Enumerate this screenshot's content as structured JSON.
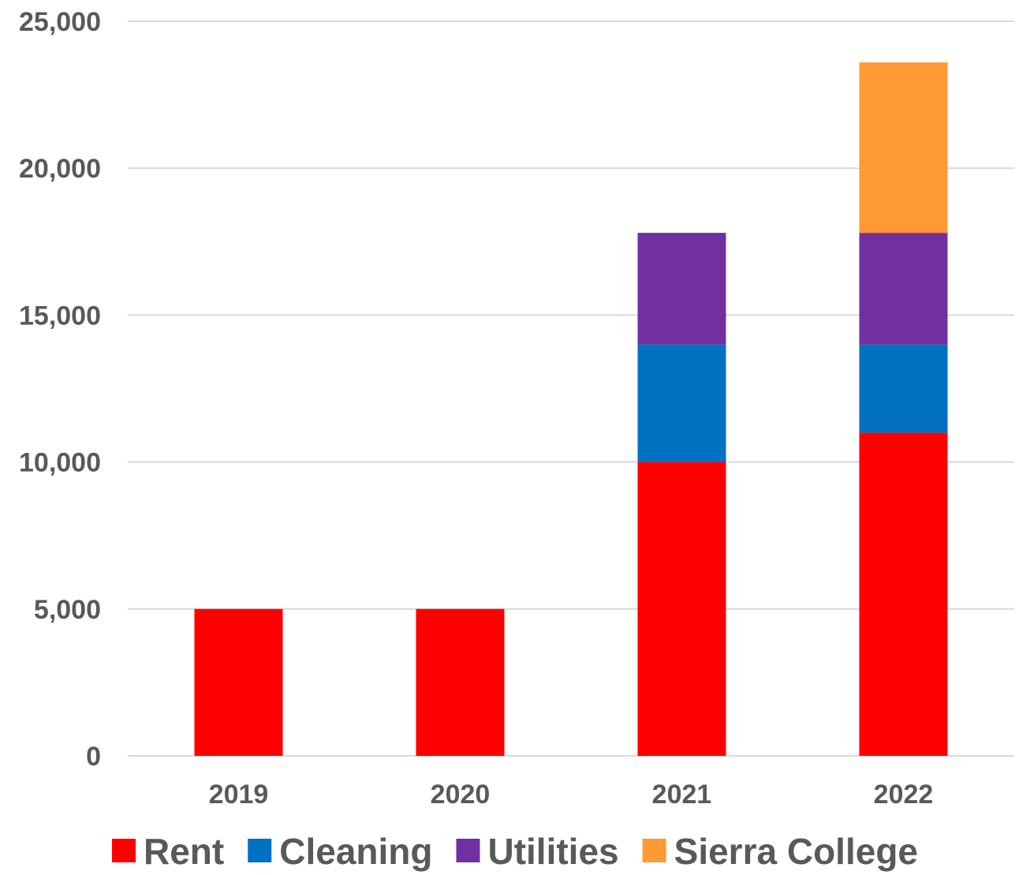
{
  "chart_data": {
    "type": "bar",
    "stacked": true,
    "categories": [
      "2019",
      "2020",
      "2021",
      "2022"
    ],
    "series": [
      {
        "name": "Rent",
        "color": "#ff0000",
        "values": [
          5000,
          5000,
          10000,
          11000
        ]
      },
      {
        "name": "Cleaning",
        "color": "#0070c0",
        "values": [
          0,
          0,
          4000,
          3000
        ]
      },
      {
        "name": "Utilities",
        "color": "#7030a0",
        "values": [
          0,
          0,
          3800,
          3800
        ]
      },
      {
        "name": "Sierra College",
        "color": "#ff9933",
        "values": [
          0,
          0,
          0,
          5800
        ]
      }
    ],
    "ylim": [
      0,
      25000
    ],
    "yticks": [
      0,
      5000,
      10000,
      15000,
      20000,
      25000
    ],
    "ytick_labels": [
      "0",
      "5,000",
      "10,000",
      "15,000",
      "20,000",
      "25,000"
    ],
    "grid": true,
    "legend_position": "bottom"
  }
}
